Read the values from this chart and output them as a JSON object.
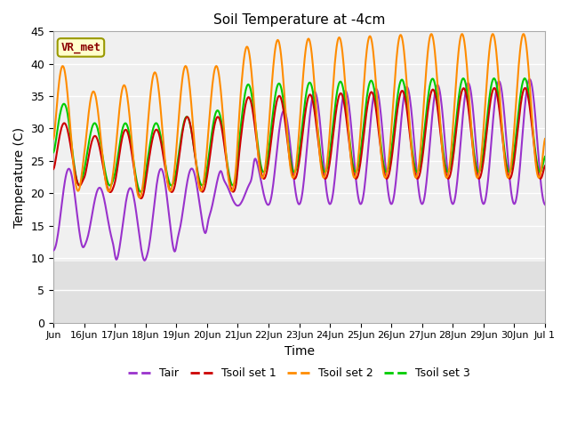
{
  "title": "Soil Temperature at -4cm",
  "xlabel": "Time",
  "ylabel": "Temperature (C)",
  "ylim": [
    0,
    45
  ],
  "yticks": [
    0,
    5,
    10,
    15,
    20,
    25,
    30,
    35,
    40,
    45
  ],
  "annotation_text": "VR_met",
  "annotation_bg": "#ffffcc",
  "annotation_border": "#999900",
  "annotation_text_color": "#8B0000",
  "fig_bg": "#ffffff",
  "plot_bg_upper": "#f0f0f0",
  "plot_bg_lower": "#e0e0e0",
  "grid_color": "#ffffff",
  "line_colors": {
    "Tair": "#9932CC",
    "Tsoil set 1": "#CC0000",
    "Tsoil set 2": "#FF8C00",
    "Tsoil set 3": "#00CC00"
  },
  "line_widths": {
    "Tair": 1.5,
    "Tsoil set 1": 1.5,
    "Tsoil set 2": 1.5,
    "Tsoil set 3": 1.5
  },
  "n_days": 16,
  "start_day": 15,
  "xtick_first": "Jun",
  "xtick_last": "Jul 1",
  "bg_band_threshold": 9.5,
  "figsize": [
    6.4,
    4.8
  ],
  "dpi": 100
}
